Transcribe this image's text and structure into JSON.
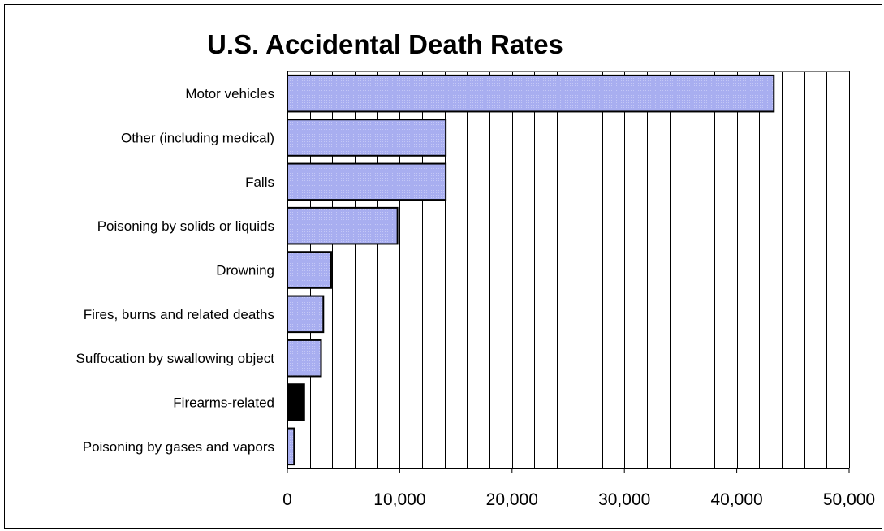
{
  "chart_data": {
    "type": "bar",
    "orientation": "horizontal",
    "title": "U.S. Accidental Death Rates",
    "xlabel": "",
    "ylabel": "",
    "categories": [
      "Motor vehicles",
      "Other (including medical)",
      "Falls",
      "Poisoning by solids or liquids",
      "Drowning",
      "Fires, burns and related deaths",
      "Suffocation by swallowing object",
      "Firearms-related",
      "Poisoning by gases and vapors"
    ],
    "values": [
      43300,
      14100,
      14100,
      9800,
      3900,
      3200,
      3000,
      1500,
      600
    ],
    "bar_colors": [
      "#aab0f0",
      "#aab0f0",
      "#aab0f0",
      "#aab0f0",
      "#aab0f0",
      "#aab0f0",
      "#aab0f0",
      "#000000",
      "#aab0f0"
    ],
    "xlim": [
      0,
      50000
    ],
    "xticks": [
      0,
      10000,
      20000,
      30000,
      40000,
      50000
    ],
    "xtick_labels": [
      "0",
      "10,000",
      "20,000",
      "30,000",
      "40,000",
      "50,000"
    ],
    "minor_grid_step": 2000,
    "grid": true,
    "legend": "none"
  }
}
